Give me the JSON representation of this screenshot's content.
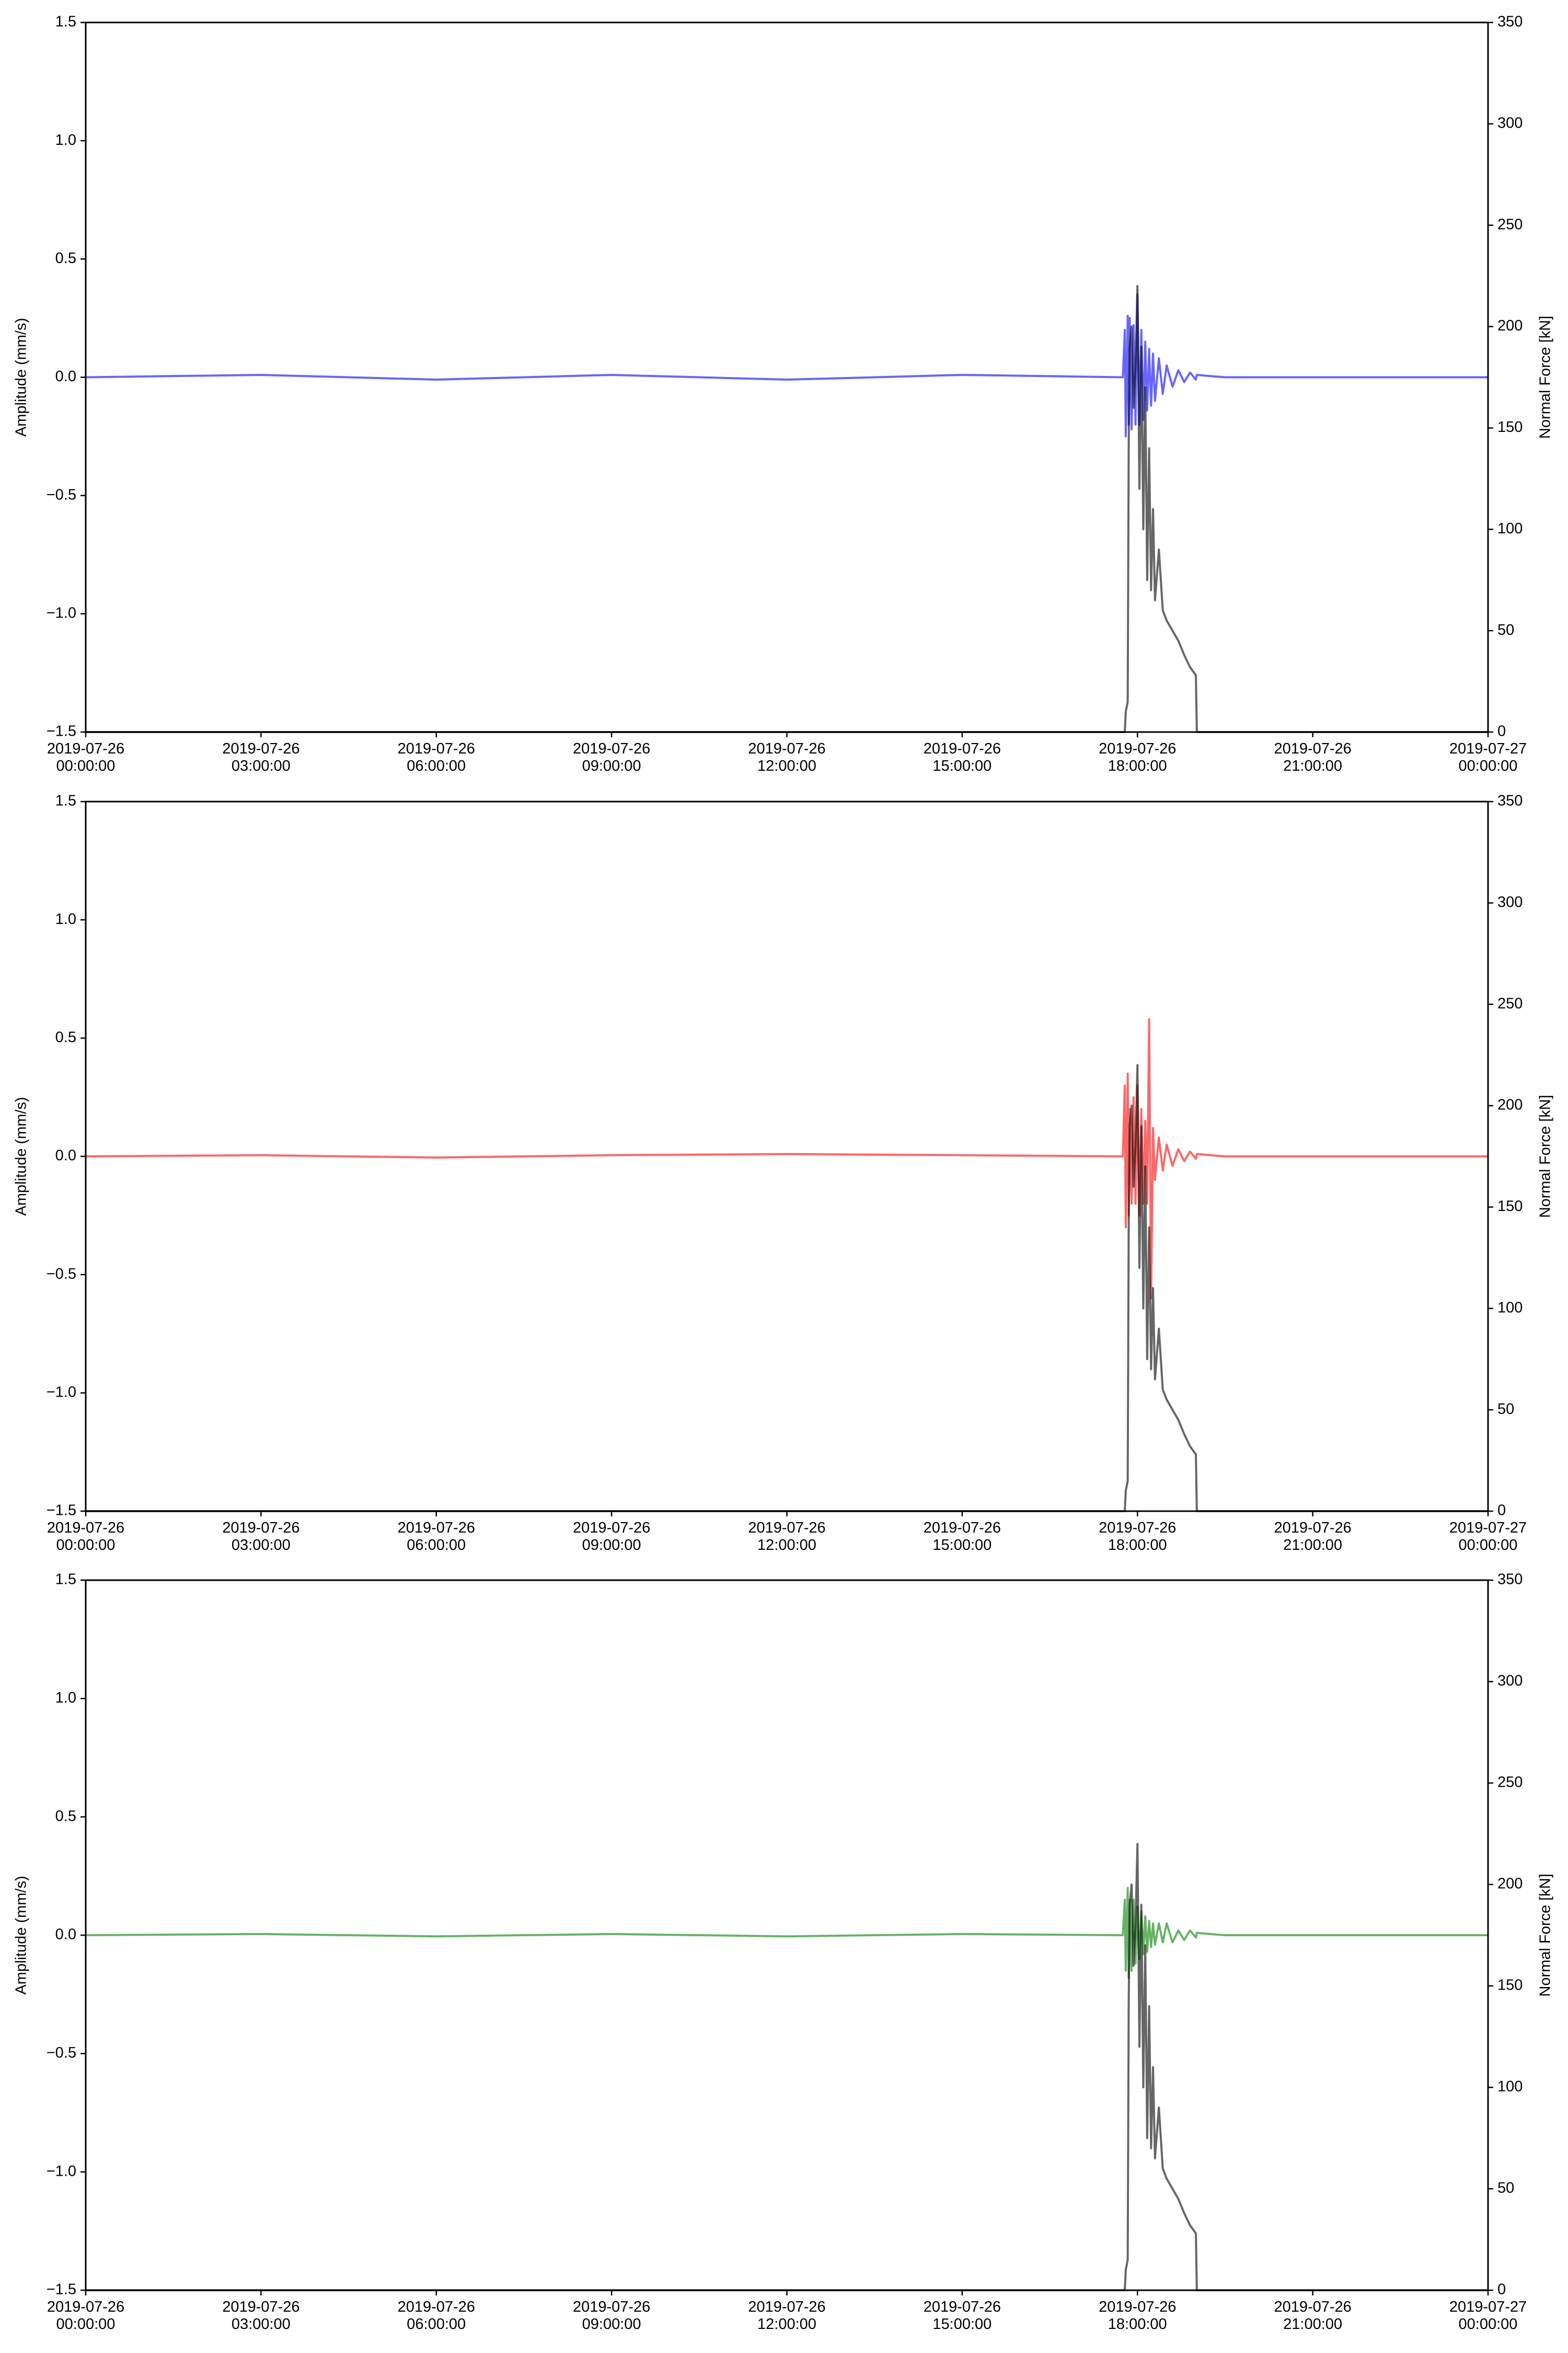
{
  "chart_data": [
    {
      "type": "line",
      "ylabel": "Amplitude (mm/s)",
      "y2label": "Normal Force [kN]",
      "xlim": [
        "2019-07-26 00:00:00",
        "2019-07-27 00:00:00"
      ],
      "xticks": [
        "2019-07-26 00:00:00",
        "2019-07-26 03:00:00",
        "2019-07-26 06:00:00",
        "2019-07-26 09:00:00",
        "2019-07-26 12:00:00",
        "2019-07-26 15:00:00",
        "2019-07-26 18:00:00",
        "2019-07-26 21:00:00",
        "2019-07-27 00:00:00"
      ],
      "ylim": [
        -1.5,
        1.5
      ],
      "yticks": [
        {
          "value": -1.5,
          "label": "−1.5"
        },
        {
          "value": -1.0,
          "label": "−1.0"
        },
        {
          "value": -0.5,
          "label": "−0.5"
        },
        {
          "value": 0,
          "label": "0.0"
        },
        0.5,
        {
          "value": 1.0,
          "label": "1.0"
        },
        1.5
      ],
      "y2lim": [
        0,
        350
      ],
      "y2ticks": [
        0,
        50,
        100,
        150,
        200,
        250,
        300,
        350
      ],
      "x": [
        "2019-07-26 00:00:00",
        "2019-07-26 03:00:00",
        "2019-07-26 06:00:00",
        "2019-07-26 09:00:00",
        "2019-07-26 12:00:00",
        "2019-07-26 15:00:00",
        "2019-07-26 17:45:00",
        "2019-07-26 17:47:00",
        "2019-07-26 17:48:00",
        "2019-07-26 17:50:00",
        "2019-07-26 17:51:00",
        "2019-07-26 17:52:00",
        "2019-07-26 17:54:00",
        "2019-07-26 17:56:00",
        "2019-07-26 17:58:00",
        "2019-07-26 18:00:00",
        "2019-07-26 18:02:00",
        "2019-07-26 18:04:00",
        "2019-07-26 18:06:00",
        "2019-07-26 18:08:00",
        "2019-07-26 18:10:00",
        "2019-07-26 18:12:00",
        "2019-07-26 18:14:00",
        "2019-07-26 18:16:00",
        "2019-07-26 18:18:00",
        "2019-07-26 18:22:00",
        "2019-07-26 18:26:00",
        "2019-07-26 18:30:00",
        "2019-07-26 18:36:00",
        "2019-07-26 18:42:00",
        "2019-07-26 18:48:00",
        "2019-07-26 18:54:00",
        "2019-07-26 19:00:00",
        "2019-07-26 19:01:00",
        "2019-07-26 19:15:00",
        "2019-07-26 19:30:00",
        "2019-07-26 21:00:00",
        "2019-07-27 00:00:00"
      ],
      "series": [
        {
          "color": "#0000ff",
          "values": [
            0,
            0.01,
            -0.01,
            0.01,
            -0.01,
            0.01,
            0,
            0.2,
            -0.25,
            0.26,
            -0.2,
            0.25,
            -0.22,
            0.22,
            -0.2,
            0.35,
            -0.2,
            0.2,
            -0.18,
            0.15,
            -0.14,
            0.12,
            -0.12,
            0.1,
            -0.1,
            0.08,
            -0.07,
            0.05,
            -0.04,
            0.03,
            -0.02,
            0.02,
            -0.01,
            0.01,
            0.005,
            0,
            0,
            0
          ]
        },
        {
          "color": "#000000",
          "axis": "y2",
          "values": [
            0,
            0,
            0,
            0,
            0,
            0,
            0,
            0,
            10,
            15,
            140,
            190,
            200,
            160,
            180,
            220,
            120,
            190,
            100,
            170,
            75,
            140,
            70,
            110,
            65,
            90,
            60,
            55,
            50,
            45,
            38,
            32,
            28,
            0,
            0,
            0,
            0,
            0
          ]
        }
      ]
    },
    {
      "type": "line",
      "ylabel": "Amplitude (mm/s)",
      "y2label": "Normal Force [kN]",
      "xlim": [
        "2019-07-26 00:00:00",
        "2019-07-27 00:00:00"
      ],
      "xticks": [
        "2019-07-26 00:00:00",
        "2019-07-26 03:00:00",
        "2019-07-26 06:00:00",
        "2019-07-26 09:00:00",
        "2019-07-26 12:00:00",
        "2019-07-26 15:00:00",
        "2019-07-26 18:00:00",
        "2019-07-26 21:00:00",
        "2019-07-27 00:00:00"
      ],
      "ylim": [
        -1.5,
        1.5
      ],
      "yticks": [
        {
          "value": -1.5,
          "label": "−1.5"
        },
        {
          "value": -1.0,
          "label": "−1.0"
        },
        {
          "value": -0.5,
          "label": "−0.5"
        },
        {
          "value": 0,
          "label": "0.0"
        },
        0.5,
        {
          "value": 1.0,
          "label": "1.0"
        },
        1.5
      ],
      "y2lim": [
        0,
        350
      ],
      "y2ticks": [
        0,
        50,
        100,
        150,
        200,
        250,
        300,
        350
      ],
      "x": [
        "2019-07-26 00:00:00",
        "2019-07-26 03:00:00",
        "2019-07-26 06:00:00",
        "2019-07-26 09:00:00",
        "2019-07-26 12:00:00",
        "2019-07-26 15:00:00",
        "2019-07-26 17:45:00",
        "2019-07-26 17:47:00",
        "2019-07-26 17:48:00",
        "2019-07-26 17:50:00",
        "2019-07-26 17:51:00",
        "2019-07-26 17:52:00",
        "2019-07-26 17:54:00",
        "2019-07-26 17:56:00",
        "2019-07-26 17:58:00",
        "2019-07-26 18:00:00",
        "2019-07-26 18:02:00",
        "2019-07-26 18:04:00",
        "2019-07-26 18:06:00",
        "2019-07-26 18:08:00",
        "2019-07-26 18:10:00",
        "2019-07-26 18:12:00",
        "2019-07-26 18:14:00",
        "2019-07-26 18:16:00",
        "2019-07-26 18:18:00",
        "2019-07-26 18:22:00",
        "2019-07-26 18:26:00",
        "2019-07-26 18:30:00",
        "2019-07-26 18:36:00",
        "2019-07-26 18:42:00",
        "2019-07-26 18:48:00",
        "2019-07-26 18:54:00",
        "2019-07-26 19:00:00",
        "2019-07-26 19:01:00",
        "2019-07-26 19:15:00",
        "2019-07-26 19:30:00",
        "2019-07-26 21:00:00",
        "2019-07-27 00:00:00"
      ],
      "series": [
        {
          "color": "#ff0000",
          "values": [
            0,
            0.005,
            -0.005,
            0.005,
            0.01,
            0.005,
            0,
            0.3,
            -0.3,
            0.35,
            -0.25,
            0.2,
            -0.2,
            0.25,
            -0.2,
            0.3,
            -0.25,
            0.2,
            -0.2,
            0.15,
            -0.2,
            0.58,
            -0.6,
            0.12,
            -0.1,
            0.08,
            -0.06,
            0.05,
            -0.04,
            0.03,
            -0.02,
            0.02,
            -0.01,
            0.01,
            0.005,
            0,
            0,
            0
          ]
        },
        {
          "color": "#000000",
          "axis": "y2",
          "values": [
            0,
            0,
            0,
            0,
            0,
            0,
            0,
            0,
            10,
            15,
            140,
            190,
            200,
            160,
            180,
            220,
            120,
            190,
            100,
            170,
            75,
            140,
            70,
            110,
            65,
            90,
            60,
            55,
            50,
            45,
            38,
            32,
            28,
            0,
            0,
            0,
            0,
            0
          ]
        }
      ]
    },
    {
      "type": "line",
      "ylabel": "Amplitude (mm/s)",
      "y2label": "Normal Force [kN]",
      "xlim": [
        "2019-07-26 00:00:00",
        "2019-07-27 00:00:00"
      ],
      "xticks": [
        "2019-07-26 00:00:00",
        "2019-07-26 03:00:00",
        "2019-07-26 06:00:00",
        "2019-07-26 09:00:00",
        "2019-07-26 12:00:00",
        "2019-07-26 15:00:00",
        "2019-07-26 18:00:00",
        "2019-07-26 21:00:00",
        "2019-07-27 00:00:00"
      ],
      "ylim": [
        -1.5,
        1.5
      ],
      "yticks": [
        {
          "value": -1.5,
          "label": "−1.5"
        },
        {
          "value": -1.0,
          "label": "−1.0"
        },
        {
          "value": -0.5,
          "label": "−0.5"
        },
        {
          "value": 0,
          "label": "0.0"
        },
        0.5,
        {
          "value": 1.0,
          "label": "1.0"
        },
        1.5
      ],
      "y2lim": [
        0,
        350
      ],
      "y2ticks": [
        0,
        50,
        100,
        150,
        200,
        250,
        300,
        350
      ],
      "x": [
        "2019-07-26 00:00:00",
        "2019-07-26 03:00:00",
        "2019-07-26 06:00:00",
        "2019-07-26 09:00:00",
        "2019-07-26 12:00:00",
        "2019-07-26 15:00:00",
        "2019-07-26 17:45:00",
        "2019-07-26 17:47:00",
        "2019-07-26 17:48:00",
        "2019-07-26 17:50:00",
        "2019-07-26 17:51:00",
        "2019-07-26 17:52:00",
        "2019-07-26 17:54:00",
        "2019-07-26 17:56:00",
        "2019-07-26 17:58:00",
        "2019-07-26 18:00:00",
        "2019-07-26 18:02:00",
        "2019-07-26 18:04:00",
        "2019-07-26 18:06:00",
        "2019-07-26 18:08:00",
        "2019-07-26 18:10:00",
        "2019-07-26 18:12:00",
        "2019-07-26 18:14:00",
        "2019-07-26 18:16:00",
        "2019-07-26 18:18:00",
        "2019-07-26 18:22:00",
        "2019-07-26 18:26:00",
        "2019-07-26 18:30:00",
        "2019-07-26 18:36:00",
        "2019-07-26 18:42:00",
        "2019-07-26 18:48:00",
        "2019-07-26 18:54:00",
        "2019-07-26 19:00:00",
        "2019-07-26 19:01:00",
        "2019-07-26 19:15:00",
        "2019-07-26 19:30:00",
        "2019-07-26 21:00:00",
        "2019-07-27 00:00:00"
      ],
      "series": [
        {
          "color": "#008000",
          "values": [
            0,
            0.005,
            -0.005,
            0.005,
            -0.005,
            0.005,
            0,
            0.15,
            -0.15,
            0.2,
            -0.18,
            0.15,
            -0.15,
            0.15,
            -0.12,
            0.12,
            -0.1,
            0.1,
            -0.08,
            0.08,
            -0.07,
            0.06,
            -0.05,
            0.05,
            -0.04,
            0.05,
            -0.03,
            0.05,
            -0.03,
            0.02,
            -0.02,
            0.02,
            -0.01,
            0.01,
            0.005,
            0,
            0,
            0
          ]
        },
        {
          "color": "#000000",
          "axis": "y2",
          "values": [
            0,
            0,
            0,
            0,
            0,
            0,
            0,
            0,
            10,
            15,
            140,
            190,
            200,
            160,
            180,
            220,
            120,
            190,
            100,
            170,
            75,
            140,
            70,
            110,
            65,
            90,
            60,
            55,
            50,
            45,
            38,
            32,
            28,
            0,
            0,
            0,
            0,
            0
          ]
        }
      ]
    }
  ]
}
